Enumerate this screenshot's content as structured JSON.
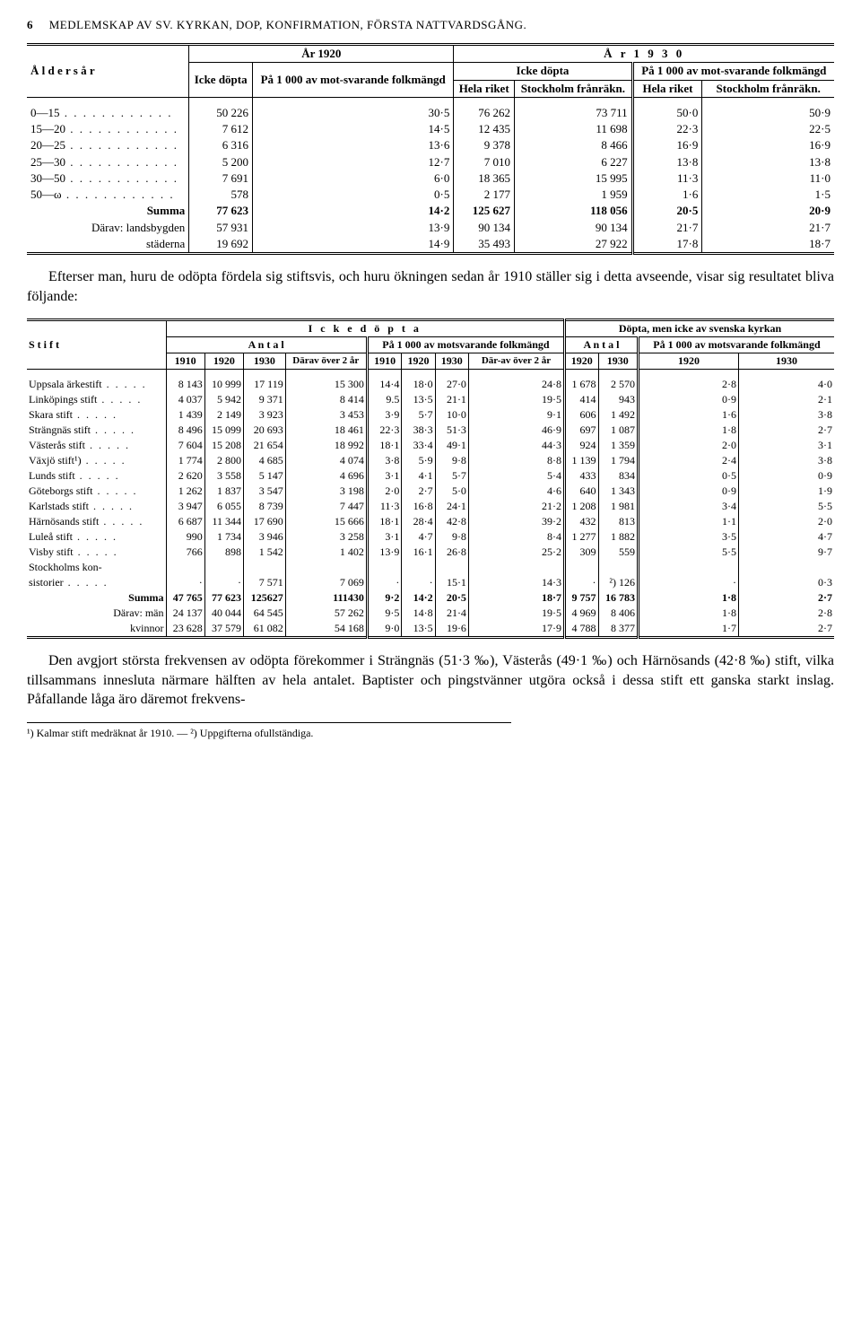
{
  "header": {
    "page_number": "6",
    "title": "MEDLEMSKAP AV SV. KYRKAN, DOP, KONFIRMATION, FÖRSTA NATTVARDSGÅNG."
  },
  "table1": {
    "col_aldersar": "Å l d e r s å r",
    "col_ar1920": "År 1920",
    "col_ar1930": "Å r   1 9 3 0",
    "col_icke_dopta": "Icke döpta",
    "col_pa1000": "På 1 000 av motsvarande folkmängd",
    "col_pa1000_short": "På 1 000 av mot-svarande folkmängd",
    "col_hela": "Hela riket",
    "col_sthlm": "Stockholm frånräkn.",
    "rows": [
      {
        "label": "0—15",
        "a": "50 226",
        "b": "30·5",
        "c": "76 262",
        "d": "73 711",
        "e": "50·0",
        "f": "50·9"
      },
      {
        "label": "15—20",
        "a": "7 612",
        "b": "14·5",
        "c": "12 435",
        "d": "11 698",
        "e": "22·3",
        "f": "22·5"
      },
      {
        "label": "20—25",
        "a": "6 316",
        "b": "13·6",
        "c": "9 378",
        "d": "8 466",
        "e": "16·9",
        "f": "16·9"
      },
      {
        "label": "25—30",
        "a": "5 200",
        "b": "12·7",
        "c": "7 010",
        "d": "6 227",
        "e": "13·8",
        "f": "13·8"
      },
      {
        "label": "30—50",
        "a": "7 691",
        "b": "6·0",
        "c": "18 365",
        "d": "15 995",
        "e": "11·3",
        "f": "11·0"
      },
      {
        "label": "50—ω",
        "a": "578",
        "b": "0·5",
        "c": "2 177",
        "d": "1 959",
        "e": "1·6",
        "f": "1·5"
      }
    ],
    "summa": {
      "label": "Summa",
      "a": "77 623",
      "b": "14·2",
      "c": "125 627",
      "d": "118 056",
      "e": "20·5",
      "f": "20·9"
    },
    "landsbygden": {
      "label": "Därav: landsbygden",
      "a": "57 931",
      "b": "13·9",
      "c": "90 134",
      "d": "90 134",
      "e": "21·7",
      "f": "21·7"
    },
    "staderna": {
      "label": "städerna",
      "a": "19 692",
      "b": "14·9",
      "c": "35 493",
      "d": "27 922",
      "e": "17·8",
      "f": "18·7"
    }
  },
  "para1": "Efterser man, huru de odöpta fördela sig stiftsvis, och huru ökningen sedan år 1910 ställer sig i detta avseende, visar sig resultatet bliva följande:",
  "table2": {
    "stift": "S t i f t",
    "icke_dopta": "I c k e   d ö p t a",
    "dopta_men": "Döpta, men icke av svenska kyrkan",
    "antal": "A n t a l",
    "pa1000": "På 1 000 av motsvarande folkmängd",
    "pa1000_s": "På 1 000 av motsvarande folkmängd",
    "y1910": "1910",
    "y1920": "1920",
    "y1930": "1930",
    "darav": "Därav över 2 år",
    "daravs": "Där-av över 2 år",
    "rows": [
      {
        "n": "Uppsala ärkestift",
        "v": [
          "8 143",
          "10 999",
          "17 119",
          "15 300",
          "14·4",
          "18·0",
          "27·0",
          "24·8",
          "1 678",
          "2 570",
          "2·8",
          "4·0"
        ]
      },
      {
        "n": "Linköpings stift",
        "v": [
          "4 037",
          "5 942",
          "9 371",
          "8 414",
          "9.5",
          "13·5",
          "21·1",
          "19·5",
          "414",
          "943",
          "0·9",
          "2·1"
        ]
      },
      {
        "n": "Skara stift",
        "v": [
          "1 439",
          "2 149",
          "3 923",
          "3 453",
          "3·9",
          "5·7",
          "10·0",
          "9·1",
          "606",
          "1 492",
          "1·6",
          "3·8"
        ]
      },
      {
        "n": "Strängnäs stift",
        "v": [
          "8 496",
          "15 099",
          "20 693",
          "18 461",
          "22·3",
          "38·3",
          "51·3",
          "46·9",
          "697",
          "1 087",
          "1·8",
          "2·7"
        ]
      },
      {
        "n": "Västerås stift",
        "v": [
          "7 604",
          "15 208",
          "21 654",
          "18 992",
          "18·1",
          "33·4",
          "49·1",
          "44·3",
          "924",
          "1 359",
          "2·0",
          "3·1"
        ]
      },
      {
        "n": "Växjö stift¹)",
        "v": [
          "1 774",
          "2 800",
          "4 685",
          "4 074",
          "3·8",
          "5·9",
          "9·8",
          "8·8",
          "1 139",
          "1 794",
          "2·4",
          "3·8"
        ]
      },
      {
        "n": "Lunds stift",
        "v": [
          "2 620",
          "3 558",
          "5 147",
          "4 696",
          "3·1",
          "4·1",
          "5·7",
          "5·4",
          "433",
          "834",
          "0·5",
          "0·9"
        ]
      },
      {
        "n": "Göteborgs stift",
        "v": [
          "1 262",
          "1 837",
          "3 547",
          "3 198",
          "2·0",
          "2·7",
          "5·0",
          "4·6",
          "640",
          "1 343",
          "0·9",
          "1·9"
        ]
      },
      {
        "n": "Karlstads stift",
        "v": [
          "3 947",
          "6 055",
          "8 739",
          "7 447",
          "11·3",
          "16·8",
          "24·1",
          "21·2",
          "1 208",
          "1 981",
          "3·4",
          "5·5"
        ]
      },
      {
        "n": "Härnösands stift",
        "v": [
          "6 687",
          "11 344",
          "17 690",
          "15 666",
          "18·1",
          "28·4",
          "42·8",
          "39·2",
          "432",
          "813",
          "1·1",
          "2·0"
        ]
      },
      {
        "n": "Luleå stift",
        "v": [
          "990",
          "1 734",
          "3 946",
          "3 258",
          "3·1",
          "4·7",
          "9·8",
          "8·4",
          "1 277",
          "1 882",
          "3·5",
          "4·7"
        ]
      },
      {
        "n": "Visby stift",
        "v": [
          "766",
          "898",
          "1 542",
          "1 402",
          "13·9",
          "16·1",
          "26·8",
          "25·2",
          "309",
          "559",
          "5·5",
          "9·7"
        ]
      }
    ],
    "sthlm_kon": {
      "n": "Stockholms kon-\nsistorier",
      "v": [
        "·",
        "·",
        "7 571",
        "7 069",
        "·",
        "·",
        "15·1",
        "14·3",
        "·",
        "²) 126",
        "·",
        "0·3"
      ]
    },
    "summa": {
      "n": "Summa",
      "v": [
        "47 765",
        "77 623",
        "125627",
        "111430",
        "9·2",
        "14·2",
        "20·5",
        "18·7",
        "9 757",
        "16 783",
        "1·8",
        "2·7"
      ]
    },
    "man": {
      "n": "Därav:        män",
      "v": [
        "24 137",
        "40 044",
        "64 545",
        "57 262",
        "9·5",
        "14·8",
        "21·4",
        "19·5",
        "4 969",
        "8 406",
        "1·8",
        "2·8"
      ]
    },
    "kvinnor": {
      "n": "kvinnor",
      "v": [
        "23 628",
        "37 579",
        "61 082",
        "54 168",
        "9·0",
        "13·5",
        "19·6",
        "17·9",
        "4 788",
        "8 377",
        "1·7",
        "2·7"
      ]
    }
  },
  "para2": "Den avgjort största frekvensen av odöpta förekommer i Strängnäs (51·3 ‰), Västerås (49·1 ‰) och Härnösands (42·8 ‰) stift, vilka tillsammans innesluta närmare hälften av hela antalet. Baptister och pingstvänner utgöra också i dessa stift ett ganska starkt inslag. Påfallande låga äro däremot frekvens-",
  "footnote": "¹) Kalmar stift medräknat år 1910. — ²) Uppgifterna ofullständiga."
}
